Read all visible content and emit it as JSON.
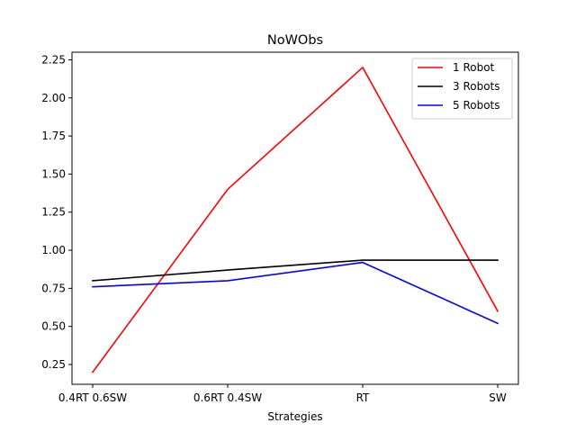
{
  "chart_data": {
    "type": "line",
    "title": "NoWObs",
    "xlabel": "Strategies",
    "ylabel": "",
    "categories": [
      "0.4RT 0.6SW",
      "0.6RT 0.4SW",
      "RT",
      "SW"
    ],
    "ylim": [
      0.12,
      2.3
    ],
    "yticks": [
      0.25,
      0.5,
      0.75,
      1.0,
      1.25,
      1.5,
      1.75,
      2.0,
      2.25
    ],
    "ytick_labels": [
      "0.25",
      "0.50",
      "0.75",
      "1.00",
      "1.25",
      "1.50",
      "1.75",
      "2.00",
      "2.25"
    ],
    "grid": false,
    "legend_position": "top-right",
    "series": [
      {
        "name": "1 Robot",
        "color": "#ff0000",
        "values": [
          0.2,
          1.4,
          2.2,
          0.6
        ]
      },
      {
        "name": "3 Robots",
        "color": "#000000",
        "values": [
          0.8,
          0.87,
          0.935,
          0.935
        ]
      },
      {
        "name": "5 Robots",
        "color": "#0000ff",
        "values": [
          0.76,
          0.8,
          0.92,
          0.52
        ]
      }
    ]
  }
}
